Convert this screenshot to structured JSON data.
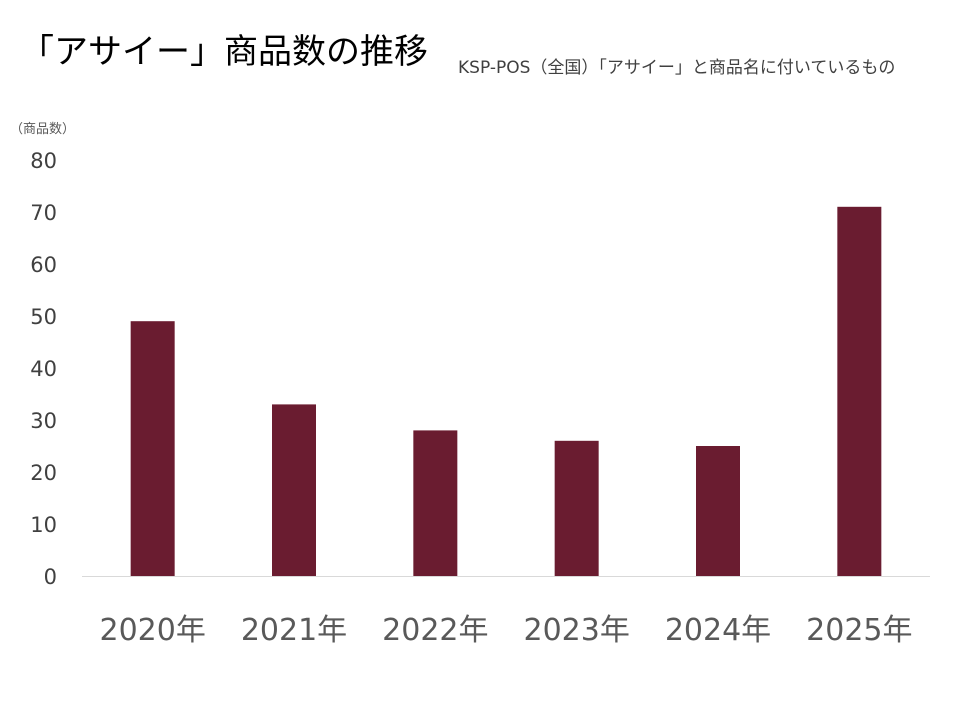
{
  "header": {
    "title": "「アサイー」商品数の推移",
    "subtitle": "KSP-POS（全国）「アサイー」と商品名に付いているもの",
    "y_unit_label": "（商品数）"
  },
  "colors": {
    "bar": "#6a1c30",
    "axis": "#d9d9d9"
  },
  "chart_data": {
    "type": "bar",
    "title": "「アサイー」商品数の推移",
    "subtitle": "KSP-POS（全国）「アサイー」と商品名に付いているもの",
    "xlabel": "",
    "ylabel": "（商品数）",
    "categories": [
      "2020年",
      "2021年",
      "2022年",
      "2023年",
      "2024年",
      "2025年"
    ],
    "values": [
      49,
      33,
      28,
      26,
      25,
      71
    ],
    "ylim": [
      0,
      80
    ],
    "yticks": [
      0,
      10,
      20,
      30,
      40,
      50,
      60,
      70,
      80
    ],
    "grid": false,
    "legend": "none"
  }
}
